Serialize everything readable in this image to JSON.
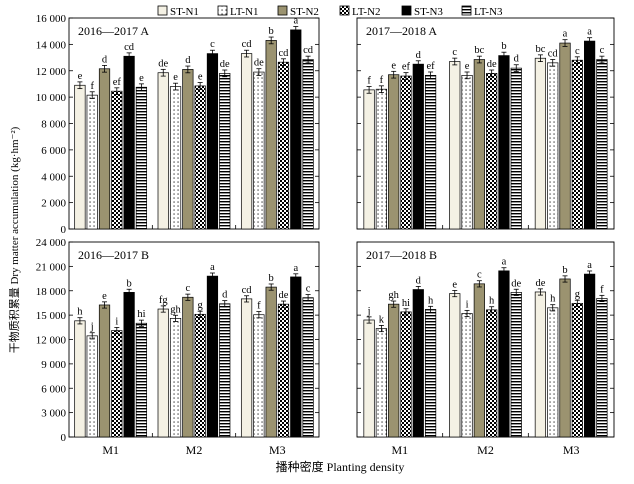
{
  "legend": [
    {
      "label": "ST-N1",
      "fill": "#f4f1e4",
      "pattern": "none"
    },
    {
      "label": "LT-N1",
      "fill": "#ffffff",
      "pattern": "dots"
    },
    {
      "label": "ST-N2",
      "fill": "#9b9370",
      "pattern": "none"
    },
    {
      "label": "LT-N2",
      "fill": "#ffffff",
      "pattern": "checker"
    },
    {
      "label": "ST-N3",
      "fill": "#000000",
      "pattern": "none"
    },
    {
      "label": "LT-N3",
      "fill": "#ffffff",
      "pattern": "hstripes"
    }
  ],
  "y_axis_label": "干物质积累量 Dry matter accumulation (kg·hm⁻²)",
  "x_axis_label": "播种密度 Planting density",
  "chart_data": [
    {
      "type": "bar",
      "title": "2016—2017  A",
      "categories": [
        "M1",
        "M2",
        "M3"
      ],
      "ylim": [
        0,
        16000
      ],
      "yticks": [
        "0",
        "2 000",
        "4 000",
        "6 000",
        "8 000",
        "10 000",
        "12 000",
        "14 000",
        "16 000"
      ],
      "series": [
        {
          "name": "ST-N1",
          "values": [
            10900,
            11850,
            13300
          ],
          "labels": [
            "e",
            "de",
            "cd"
          ]
        },
        {
          "name": "LT-N1",
          "values": [
            10150,
            10800,
            11900
          ],
          "labels": [
            "f",
            "e",
            "de"
          ]
        },
        {
          "name": "ST-N2",
          "values": [
            12150,
            12100,
            14300
          ],
          "labels": [
            "d",
            "d",
            "b"
          ]
        },
        {
          "name": "LT-N2",
          "values": [
            10450,
            10850,
            12650
          ],
          "labels": [
            "ef",
            "e",
            "cd"
          ]
        },
        {
          "name": "ST-N3",
          "values": [
            13100,
            13300,
            15100
          ],
          "labels": [
            "cd",
            "c",
            "a"
          ]
        },
        {
          "name": "LT-N3",
          "values": [
            10750,
            11800,
            12850
          ],
          "labels": [
            "e",
            "de",
            "cd"
          ]
        }
      ]
    },
    {
      "type": "bar",
      "title": "2017—2018  A",
      "categories": [
        "M1",
        "M2",
        "M3"
      ],
      "ylim": [
        0,
        16000
      ],
      "series": [
        {
          "name": "ST-N1",
          "values": [
            10550,
            12700,
            12950
          ],
          "labels": [
            "f",
            "c",
            "bc"
          ]
        },
        {
          "name": "LT-N1",
          "values": [
            10600,
            11650,
            12600
          ],
          "labels": [
            "f",
            "e",
            "cd"
          ]
        },
        {
          "name": "ST-N2",
          "values": [
            11700,
            12850,
            14100
          ],
          "labels": [
            "e",
            "bc",
            "a"
          ]
        },
        {
          "name": "LT-N2",
          "values": [
            11600,
            11800,
            12800
          ],
          "labels": [
            "ef",
            "de",
            "c"
          ]
        },
        {
          "name": "ST-N3",
          "values": [
            12500,
            13150,
            14250
          ],
          "labels": [
            "d",
            "b",
            "a"
          ]
        },
        {
          "name": "LT-N3",
          "values": [
            11650,
            12200,
            12850
          ],
          "labels": [
            "ef",
            "d",
            "c"
          ]
        }
      ]
    },
    {
      "type": "bar",
      "title": "2016—2017  B",
      "categories": [
        "M1",
        "M2",
        "M3"
      ],
      "ylim": [
        0,
        24000
      ],
      "yticks": [
        "0",
        "3 000",
        "6 000",
        "9 000",
        "12 000",
        "15 000",
        "18 000",
        "21 000",
        "24 000"
      ],
      "series": [
        {
          "name": "ST-N1",
          "values": [
            14300,
            15750,
            17000
          ],
          "labels": [
            "h",
            "fg",
            "cd"
          ]
        },
        {
          "name": "LT-N1",
          "values": [
            12450,
            14600,
            15050
          ],
          "labels": [
            "j",
            "gh",
            "f"
          ]
        },
        {
          "name": "ST-N2",
          "values": [
            16250,
            17200,
            18450
          ],
          "labels": [
            "e",
            "c",
            "b"
          ]
        },
        {
          "name": "LT-N2",
          "values": [
            13100,
            15100,
            16350
          ],
          "labels": [
            "i",
            "g",
            "de"
          ]
        },
        {
          "name": "ST-N3",
          "values": [
            17800,
            19800,
            19700
          ],
          "labels": [
            "b",
            "a",
            "a"
          ]
        },
        {
          "name": "LT-N3",
          "values": [
            14000,
            16400,
            17150
          ],
          "labels": [
            "hi",
            "d",
            "c"
          ]
        }
      ]
    },
    {
      "type": "bar",
      "title": "2017—2018  B",
      "categories": [
        "M1",
        "M2",
        "M3"
      ],
      "ylim": [
        0,
        24000
      ],
      "series": [
        {
          "name": "ST-N1",
          "values": [
            14400,
            17650,
            17850
          ],
          "labels": [
            "j",
            "e",
            "de"
          ]
        },
        {
          "name": "LT-N1",
          "values": [
            13350,
            15200,
            15900
          ],
          "labels": [
            "k",
            "i",
            "h"
          ]
        },
        {
          "name": "ST-N2",
          "values": [
            16350,
            18850,
            19450
          ],
          "labels": [
            "gh",
            "c",
            "b"
          ]
        },
        {
          "name": "LT-N2",
          "values": [
            15400,
            15650,
            16450
          ],
          "labels": [
            "hi",
            "h",
            "g"
          ]
        },
        {
          "name": "ST-N3",
          "values": [
            18150,
            20450,
            20050
          ],
          "labels": [
            "d",
            "a",
            "a"
          ]
        },
        {
          "name": "LT-N3",
          "values": [
            15700,
            17800,
            17050
          ],
          "labels": [
            "h",
            "de",
            "f"
          ]
        }
      ]
    }
  ]
}
